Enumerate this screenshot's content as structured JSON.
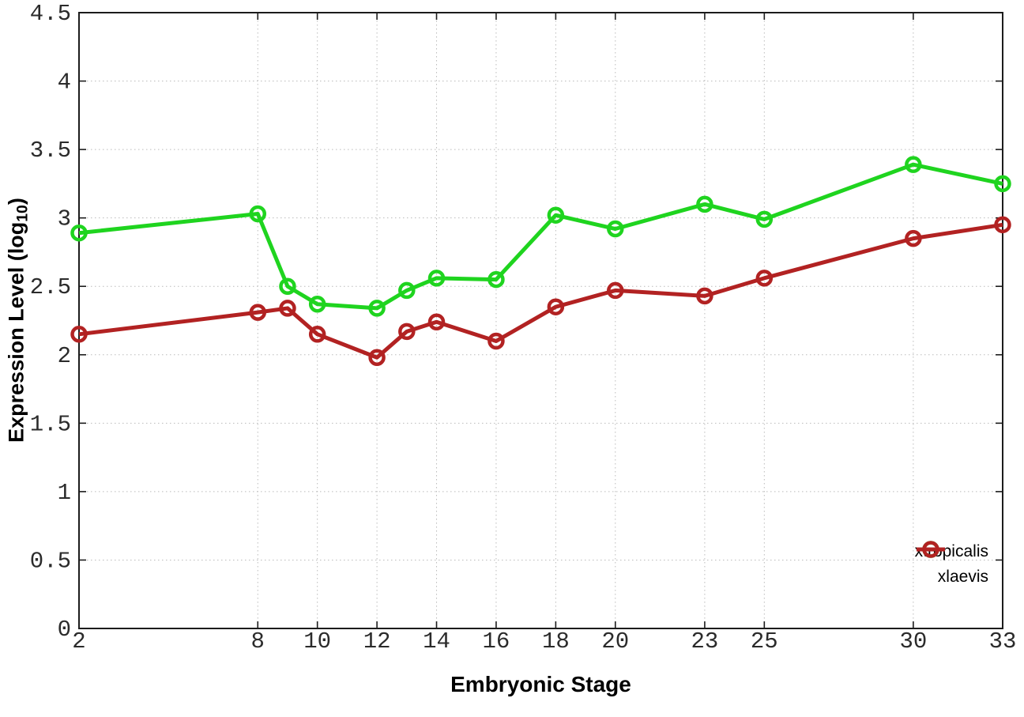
{
  "chart_data": {
    "type": "line",
    "title": "",
    "xlabel": "Embryonic Stage",
    "ylabel": "Expression Level (log10)",
    "ylabel_parts": {
      "main": "Expression Level (log",
      "sub": "10",
      "end": ")"
    },
    "x": [
      2,
      8,
      9,
      10,
      12,
      13,
      14,
      16,
      18,
      20,
      23,
      25,
      30,
      33
    ],
    "series": [
      {
        "name": "xtropicalis",
        "color": "#1fd41f",
        "values": [
          2.89,
          3.03,
          2.5,
          2.37,
          2.34,
          2.47,
          2.56,
          2.55,
          3.02,
          2.92,
          3.1,
          2.99,
          3.39,
          3.25
        ]
      },
      {
        "name": "xlaevis",
        "color": "#b22222",
        "values": [
          2.15,
          2.31,
          2.34,
          2.15,
          1.98,
          2.17,
          2.24,
          2.1,
          2.35,
          2.47,
          2.43,
          2.56,
          2.85,
          2.95
        ]
      }
    ],
    "xlim": [
      2,
      33
    ],
    "ylim": [
      0,
      4.5
    ],
    "xticks": {
      "values": [
        2,
        8,
        10,
        12,
        14,
        16,
        18,
        20,
        23,
        25,
        30,
        33
      ],
      "labels": [
        "2",
        "8",
        "10",
        "12",
        "14",
        "16",
        "18",
        "20",
        "23",
        "25",
        "30",
        "33"
      ]
    },
    "yticks": {
      "values": [
        0,
        0.5,
        1,
        1.5,
        2,
        2.5,
        3,
        3.5,
        4,
        4.5
      ],
      "labels": [
        "0",
        "0.5",
        "1",
        "1.5",
        "2",
        "2.5",
        "3",
        "3.5",
        "4",
        "4.5"
      ]
    },
    "grid": true,
    "grid_style": "dotted",
    "legend_position": "bottom-right",
    "marker": "open-circle",
    "background_color": "#ffffff",
    "axis_color": "#1c1c1c",
    "grid_color": "#bbbbbb",
    "tick_label_color": "#2b2b2b"
  }
}
